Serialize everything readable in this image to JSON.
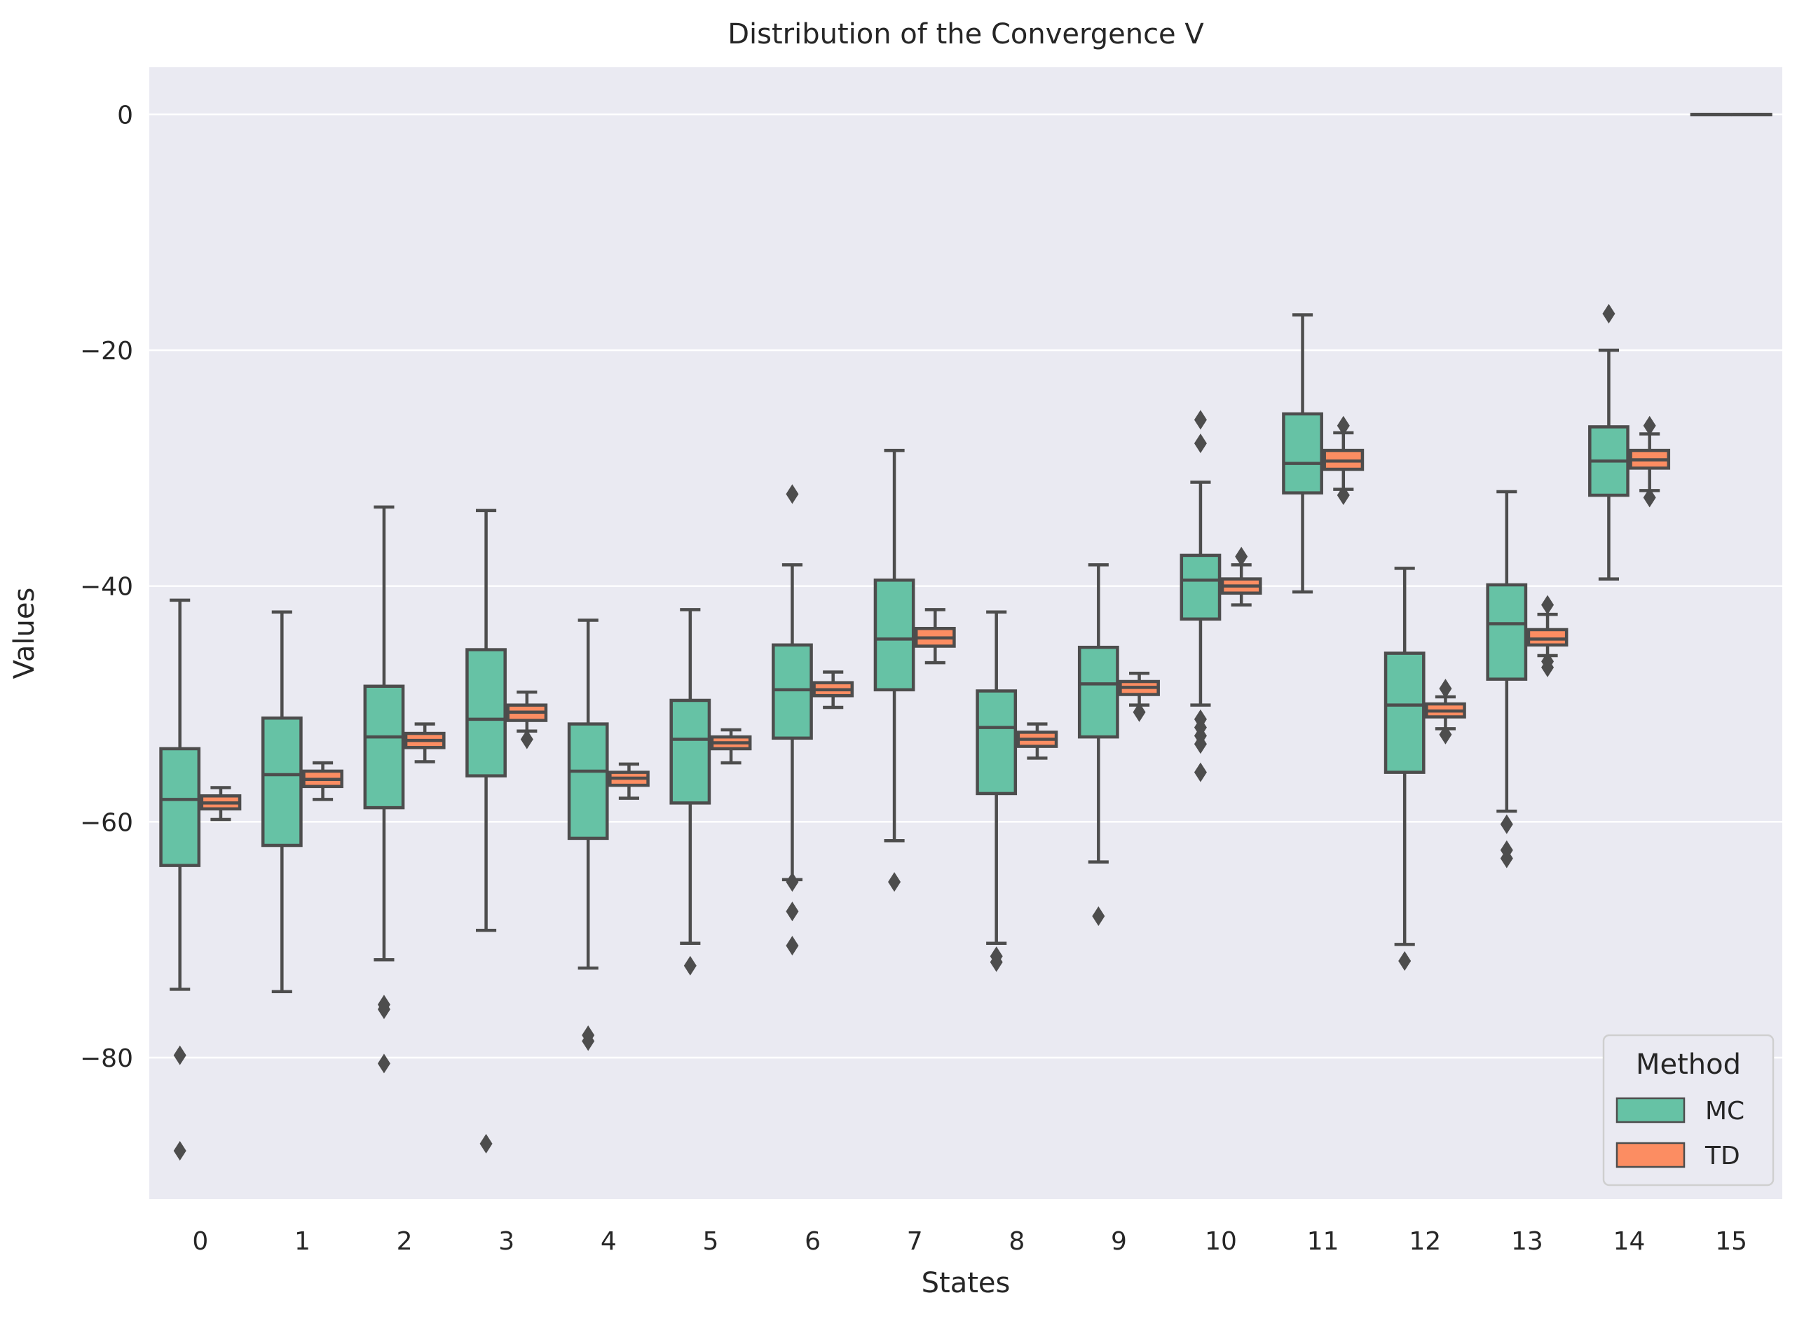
{
  "chart_data": {
    "type": "box",
    "title": "Distribution of the Convergence V",
    "xlabel": "States",
    "ylabel": "Values",
    "ylim": [
      -92,
      4
    ],
    "yticks": [
      0,
      -20,
      -40,
      -60,
      -80
    ],
    "ytick_labels": [
      "0",
      "−20",
      "−40",
      "−60",
      "−80"
    ],
    "categories": [
      "0",
      "1",
      "2",
      "3",
      "4",
      "5",
      "6",
      "7",
      "8",
      "9",
      "10",
      "11",
      "12",
      "13",
      "14",
      "15"
    ],
    "grid": "horizontal",
    "background": "#eaeaf2",
    "legend": {
      "title": "Method",
      "placement": "lower-right"
    },
    "series": [
      {
        "name": "MC",
        "color": "#66c2a5",
        "boxes": [
          {
            "whislo": -74.2,
            "q1": -63.7,
            "med": -58.1,
            "q3": -53.8,
            "whishi": -41.2,
            "fliers": [
              -79.8,
              -87.9
            ]
          },
          {
            "whislo": -74.4,
            "q1": -62.0,
            "med": -56.0,
            "q3": -51.2,
            "whishi": -42.2,
            "fliers": []
          },
          {
            "whislo": -71.7,
            "q1": -58.8,
            "med": -52.8,
            "q3": -48.5,
            "whishi": -33.3,
            "fliers": [
              -75.5,
              -75.9,
              -80.5
            ]
          },
          {
            "whislo": -69.2,
            "q1": -56.1,
            "med": -51.3,
            "q3": -45.4,
            "whishi": -33.6,
            "fliers": [
              -87.3
            ]
          },
          {
            "whislo": -72.4,
            "q1": -61.4,
            "med": -55.7,
            "q3": -51.7,
            "whishi": -42.9,
            "fliers": [
              -78.1,
              -78.6
            ]
          },
          {
            "whislo": -70.3,
            "q1": -58.4,
            "med": -53.0,
            "q3": -49.7,
            "whishi": -42.0,
            "fliers": [
              -72.2
            ]
          },
          {
            "whislo": -64.9,
            "q1": -52.9,
            "med": -48.8,
            "q3": -45.0,
            "whishi": -38.2,
            "fliers": [
              -32.2,
              -65.1,
              -67.6,
              -70.5
            ]
          },
          {
            "whislo": -61.6,
            "q1": -48.8,
            "med": -44.5,
            "q3": -39.5,
            "whishi": -28.5,
            "fliers": [
              -65.1
            ]
          },
          {
            "whislo": -70.3,
            "q1": -57.6,
            "med": -52.0,
            "q3": -48.9,
            "whishi": -42.2,
            "fliers": [
              -71.4,
              -71.9
            ]
          },
          {
            "whislo": -63.4,
            "q1": -52.8,
            "med": -48.3,
            "q3": -45.2,
            "whishi": -38.2,
            "fliers": [
              -68.0
            ]
          },
          {
            "whislo": -50.1,
            "q1": -42.8,
            "med": -39.5,
            "q3": -37.4,
            "whishi": -31.2,
            "fliers": [
              -25.9,
              -27.9,
              -51.3,
              -52.0,
              -52.7,
              -53.4,
              -55.8
            ]
          },
          {
            "whislo": -40.5,
            "q1": -32.1,
            "med": -29.6,
            "q3": -25.4,
            "whishi": -17.0,
            "fliers": []
          },
          {
            "whislo": -70.4,
            "q1": -55.8,
            "med": -50.1,
            "q3": -45.7,
            "whishi": -38.5,
            "fliers": [
              -71.8
            ]
          },
          {
            "whislo": -59.1,
            "q1": -47.9,
            "med": -43.2,
            "q3": -39.9,
            "whishi": -32.0,
            "fliers": [
              -60.2,
              -62.4,
              -63.1
            ]
          },
          {
            "whislo": -39.4,
            "q1": -32.3,
            "med": -29.4,
            "q3": -26.5,
            "whishi": -20.0,
            "fliers": [
              -16.9
            ]
          },
          {
            "whislo": 0,
            "q1": 0,
            "med": 0,
            "q3": 0,
            "whishi": 0,
            "fliers": []
          }
        ]
      },
      {
        "name": "TD",
        "color": "#fc8d62",
        "boxes": [
          {
            "whislo": -59.8,
            "q1": -58.9,
            "med": -58.4,
            "q3": -57.8,
            "whishi": -57.1,
            "fliers": []
          },
          {
            "whislo": -58.1,
            "q1": -57.0,
            "med": -56.4,
            "q3": -55.7,
            "whishi": -55.0,
            "fliers": []
          },
          {
            "whislo": -54.9,
            "q1": -53.7,
            "med": -53.1,
            "q3": -52.5,
            "whishi": -51.7,
            "fliers": []
          },
          {
            "whislo": -52.3,
            "q1": -51.4,
            "med": -50.7,
            "q3": -50.1,
            "whishi": -49.0,
            "fliers": [
              -53.0
            ]
          },
          {
            "whislo": -58.0,
            "q1": -56.9,
            "med": -56.3,
            "q3": -55.8,
            "whishi": -55.1,
            "fliers": []
          },
          {
            "whislo": -55.0,
            "q1": -53.8,
            "med": -53.3,
            "q3": -52.8,
            "whishi": -52.2,
            "fliers": []
          },
          {
            "whislo": -50.3,
            "q1": -49.3,
            "med": -48.8,
            "q3": -48.2,
            "whishi": -47.3,
            "fliers": []
          },
          {
            "whislo": -46.5,
            "q1": -45.1,
            "med": -44.4,
            "q3": -43.6,
            "whishi": -42.0,
            "fliers": []
          },
          {
            "whislo": -54.6,
            "q1": -53.6,
            "med": -53.0,
            "q3": -52.4,
            "whishi": -51.7,
            "fliers": []
          },
          {
            "whislo": -50.1,
            "q1": -49.2,
            "med": -48.6,
            "q3": -48.1,
            "whishi": -47.4,
            "fliers": [
              -50.7
            ]
          },
          {
            "whislo": -41.6,
            "q1": -40.6,
            "med": -40.0,
            "q3": -39.4,
            "whishi": -38.2,
            "fliers": [
              -37.5
            ]
          },
          {
            "whislo": -31.8,
            "q1": -30.1,
            "med": -29.4,
            "q3": -28.5,
            "whishi": -27.0,
            "fliers": [
              -26.4,
              -32.3
            ]
          },
          {
            "whislo": -52.1,
            "q1": -51.1,
            "med": -50.6,
            "q3": -50.0,
            "whishi": -49.4,
            "fliers": [
              -48.7,
              -52.6
            ]
          },
          {
            "whislo": -45.9,
            "q1": -45.0,
            "med": -44.5,
            "q3": -43.7,
            "whishi": -42.4,
            "fliers": [
              -41.6,
              -46.4,
              -46.9
            ]
          },
          {
            "whislo": -31.9,
            "q1": -30.0,
            "med": -29.3,
            "q3": -28.5,
            "whishi": -27.1,
            "fliers": [
              -26.4,
              -32.5
            ]
          },
          {
            "whislo": 0,
            "q1": 0,
            "med": 0,
            "q3": 0,
            "whishi": 0,
            "fliers": []
          }
        ]
      }
    ]
  }
}
